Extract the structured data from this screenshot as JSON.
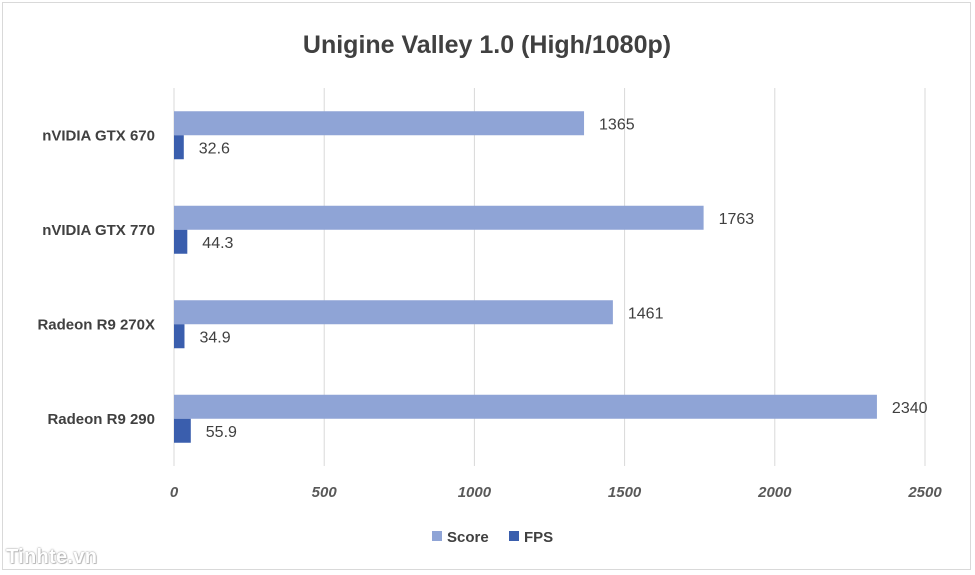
{
  "chart_data": {
    "type": "bar",
    "orientation": "horizontal",
    "title": "Unigine Valley 1.0 (High/1080p)",
    "categories": [
      "nVIDIA GTX 670",
      "nVIDIA GTX 770",
      "Radeon R9 270X",
      "Radeon R9 290"
    ],
    "series": [
      {
        "name": "Score",
        "values": [
          1365,
          1763,
          1461,
          2340
        ],
        "labels": [
          "1365",
          "1763",
          "1461",
          "2340"
        ],
        "color": "#8FA4D6"
      },
      {
        "name": "FPS",
        "values": [
          32.6,
          44.3,
          34.9,
          55.9
        ],
        "labels": [
          "32.6",
          "44.3",
          "34.9",
          "55.9"
        ],
        "color": "#3A5EAD"
      }
    ],
    "xlim": [
      0,
      2500
    ],
    "xticks": [
      "0",
      "500",
      "1000",
      "1500",
      "2000",
      "2500"
    ],
    "grid": true,
    "legend_position": "bottom"
  },
  "watermark": "Tinhte.vn"
}
